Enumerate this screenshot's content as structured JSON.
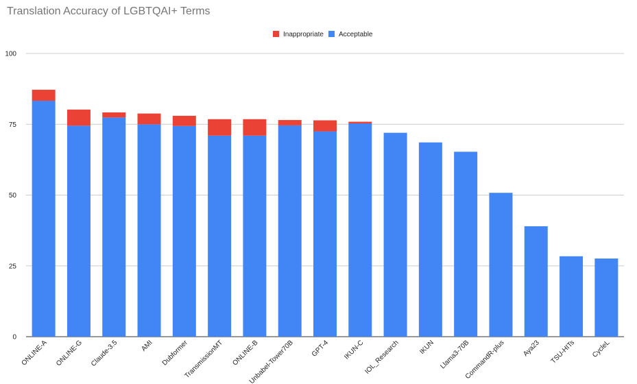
{
  "chart_data": {
    "type": "bar",
    "stacked": true,
    "title": "Translation Accuracy of LGBTQAI+ Terms",
    "xlabel": "",
    "ylabel": "",
    "ylim": [
      0,
      100
    ],
    "yticks": [
      0,
      25,
      50,
      75,
      100
    ],
    "grid": true,
    "legend_position": "top-center",
    "categories": [
      "ONLINE-A",
      "ONLINE-G",
      "Claude-3.5",
      "AMI",
      "Dubformer",
      "TransmissionMT",
      "ONLINE-B",
      "Unbabel-Tower70B",
      "GPT-4",
      "IKUN-C",
      "IOL_Research",
      "IKUN",
      "Llama3-70B",
      "CommandR-plus",
      "Aya23",
      "TSU-HITs",
      "CycleL"
    ],
    "series": [
      {
        "name": "Acceptable",
        "color": "#4285f4",
        "values": [
          83.3,
          74.5,
          77.4,
          75.0,
          74.4,
          71.0,
          71.0,
          74.6,
          72.5,
          75.3,
          72.0,
          68.6,
          65.3,
          50.8,
          39.0,
          28.4,
          27.6
        ]
      },
      {
        "name": "Inappropriate",
        "color": "#ea4335",
        "values": [
          3.9,
          5.7,
          1.8,
          3.8,
          3.6,
          5.8,
          5.8,
          1.9,
          3.9,
          0.6,
          0,
          0,
          0,
          0,
          0,
          0,
          0
        ]
      }
    ],
    "legend": [
      "Inappropriate",
      "Acceptable"
    ]
  }
}
